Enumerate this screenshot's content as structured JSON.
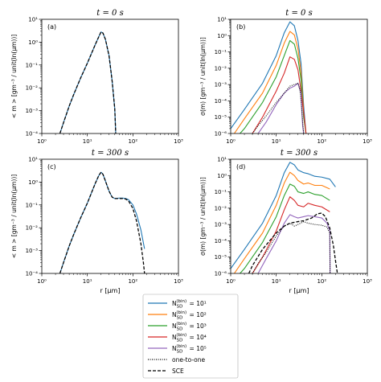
{
  "chart_data": [
    {
      "type": "line",
      "title": "t = 0 s",
      "panel_label": "(a)",
      "ylabel": "< m > [gm⁻³ / unit(ln(μm))]",
      "xlabel": "",
      "xscale": "log",
      "yscale": "log",
      "xlim": [
        1,
        1000
      ],
      "ylim": [
        0.0001,
        10
      ],
      "series": [
        {
          "ref": "bin10",
          "color": "#1f77b4",
          "dash": "",
          "x": [
            2.5,
            3,
            4,
            5,
            7,
            10,
            15,
            18,
            20,
            22,
            25,
            30,
            35,
            40,
            42
          ],
          "y": [
            0.0001,
            0.0003,
            0.0016,
            0.005,
            0.025,
            0.12,
            0.8,
            1.8,
            2.8,
            2.5,
            1.3,
            0.25,
            0.02,
            0.0012,
            0.0001
          ]
        },
        {
          "ref": "sce",
          "color": "#000000",
          "dash": "4,2",
          "x": [
            2.5,
            3,
            4,
            5,
            7,
            10,
            15,
            18,
            20,
            22,
            25,
            30,
            35,
            40,
            42
          ],
          "y": [
            0.0001,
            0.0003,
            0.0016,
            0.005,
            0.025,
            0.12,
            0.8,
            1.8,
            2.8,
            2.5,
            1.3,
            0.25,
            0.02,
            0.0012,
            0.0001
          ]
        }
      ]
    },
    {
      "type": "line",
      "title": "t = 0 s",
      "panel_label": "(b)",
      "ylabel": "σ(m) [gm⁻³ / unit(ln(μm))]",
      "xlabel": "",
      "xscale": "log",
      "yscale": "log",
      "xlim": [
        1,
        1000
      ],
      "ylim": [
        1e-06,
        10
      ],
      "series": [
        {
          "ref": "bin10",
          "color": "#1f77b4",
          "dash": "",
          "x": [
            1,
            2,
            5,
            10,
            15,
            20,
            25,
            30,
            35,
            40,
            45
          ],
          "y": [
            2e-06,
            3e-05,
            0.0012,
            0.06,
            1.5,
            7,
            4,
            0.5,
            0.02,
            5e-05,
            1e-06
          ]
        },
        {
          "ref": "bin100",
          "color": "#ff7f0e",
          "dash": "",
          "x": [
            1.2,
            2,
            5,
            10,
            15,
            20,
            25,
            30,
            35,
            40,
            45
          ],
          "y": [
            1e-06,
            8e-06,
            0.0003,
            0.015,
            0.35,
            1.8,
            1.1,
            0.15,
            0.006,
            2e-05,
            1e-06
          ]
        },
        {
          "ref": "bin1000",
          "color": "#2ca02c",
          "dash": "",
          "x": [
            1.6,
            2,
            5,
            10,
            15,
            20,
            25,
            30,
            35,
            40,
            45
          ],
          "y": [
            1e-06,
            2e-06,
            8e-05,
            0.003,
            0.06,
            0.5,
            0.3,
            0.04,
            0.002,
            1e-05,
            1e-06
          ]
        },
        {
          "ref": "bin10000",
          "color": "#d62728",
          "dash": "",
          "x": [
            3,
            5,
            10,
            15,
            20,
            25,
            30,
            35,
            40,
            45
          ],
          "y": [
            1e-06,
            1e-05,
            0.0004,
            0.005,
            0.05,
            0.035,
            0.008,
            0.0004,
            2e-05,
            1e-06
          ]
        },
        {
          "ref": "bin100000",
          "color": "#9467bd",
          "dash": "",
          "x": [
            4,
            6,
            10,
            15,
            20,
            25,
            30,
            35,
            38,
            40
          ],
          "y": [
            1e-06,
            5e-06,
            6e-05,
            0.0003,
            0.0006,
            0.0008,
            0.0012,
            0.0003,
            3e-06,
            1e-06
          ]
        },
        {
          "ref": "oto",
          "color": "#000000",
          "dash": "1,1.5",
          "x": [
            3,
            4,
            6,
            10,
            15,
            20,
            25,
            30,
            33,
            35,
            38,
            40
          ],
          "y": [
            1e-06,
            3e-06,
            1.2e-05,
            8e-05,
            0.0003,
            0.0008,
            0.001,
            0.0012,
            0.0005,
            0.0001,
            5e-06,
            1e-06
          ]
        }
      ]
    },
    {
      "type": "line",
      "title": "t = 300 s",
      "panel_label": "(c)",
      "ylabel": "< m > [gm⁻³ / unit(ln(μm))]",
      "xlabel": "r [μm]",
      "xscale": "log",
      "yscale": "log",
      "xlim": [
        1,
        1000
      ],
      "ylim": [
        0.0001,
        10
      ],
      "series": [
        {
          "ref": "bin10",
          "color": "#1f77b4",
          "dash": "",
          "x": [
            2.5,
            3,
            4,
            5,
            7,
            10,
            15,
            18,
            20,
            22,
            25,
            30,
            35,
            40,
            50,
            60,
            70,
            80,
            100,
            120,
            150,
            180
          ],
          "y": [
            0.0001,
            0.0003,
            0.0016,
            0.005,
            0.025,
            0.12,
            0.9,
            2.0,
            2.7,
            2.2,
            1.1,
            0.4,
            0.22,
            0.19,
            0.2,
            0.2,
            0.19,
            0.17,
            0.1,
            0.04,
            0.008,
            0.0012
          ]
        },
        {
          "ref": "sce",
          "color": "#000000",
          "dash": "4,2",
          "x": [
            2.5,
            3,
            4,
            5,
            7,
            10,
            15,
            18,
            20,
            22,
            25,
            30,
            35,
            40,
            50,
            60,
            70,
            80,
            100,
            120,
            150,
            170,
            180
          ],
          "y": [
            0.0001,
            0.0003,
            0.0016,
            0.005,
            0.025,
            0.12,
            0.9,
            2.0,
            2.7,
            2.2,
            1.1,
            0.4,
            0.22,
            0.19,
            0.19,
            0.19,
            0.18,
            0.15,
            0.07,
            0.02,
            0.002,
            0.0003,
            0.0001
          ]
        }
      ]
    },
    {
      "type": "line",
      "title": "t = 300 s",
      "panel_label": "(d)",
      "ylabel": "σ(m) [gm⁻³ / unit(ln(μm))]",
      "xlabel": "r [μm]",
      "xscale": "log",
      "yscale": "log",
      "xlim": [
        1,
        1000
      ],
      "ylim": [
        1e-06,
        10
      ],
      "series": [
        {
          "ref": "bin10",
          "color": "#1f77b4",
          "dash": "",
          "x": [
            1,
            2,
            5,
            10,
            15,
            20,
            25,
            30,
            40,
            50,
            70,
            100,
            150,
            200
          ],
          "y": [
            2e-06,
            3e-05,
            0.0012,
            0.06,
            1.5,
            6.5,
            4.5,
            2.2,
            1.5,
            1.3,
            0.9,
            0.8,
            0.6,
            0.2
          ]
        },
        {
          "ref": "bin100",
          "color": "#ff7f0e",
          "dash": "",
          "x": [
            1.2,
            2,
            5,
            10,
            15,
            20,
            25,
            30,
            40,
            50,
            70,
            100,
            150
          ],
          "y": [
            1e-06,
            8e-06,
            0.0003,
            0.015,
            0.35,
            1.6,
            1.0,
            0.5,
            0.3,
            0.35,
            0.25,
            0.25,
            0.15
          ]
        },
        {
          "ref": "bin1000",
          "color": "#2ca02c",
          "dash": "",
          "x": [
            1.6,
            2,
            5,
            10,
            15,
            20,
            25,
            30,
            40,
            50,
            70,
            100,
            150
          ],
          "y": [
            1e-06,
            2e-06,
            8e-05,
            0.003,
            0.06,
            0.3,
            0.22,
            0.1,
            0.08,
            0.1,
            0.07,
            0.06,
            0.03
          ]
        },
        {
          "ref": "bin10000",
          "color": "#d62728",
          "dash": "",
          "x": [
            3,
            5,
            10,
            15,
            20,
            25,
            30,
            40,
            50,
            70,
            100,
            150
          ],
          "y": [
            1e-06,
            1e-05,
            0.0004,
            0.008,
            0.05,
            0.03,
            0.015,
            0.012,
            0.02,
            0.015,
            0.012,
            0.006
          ]
        },
        {
          "ref": "bin100000",
          "color": "#9467bd",
          "dash": "",
          "x": [
            4,
            6,
            10,
            15,
            20,
            25,
            30,
            40,
            50,
            70,
            100,
            130,
            150,
            152
          ],
          "y": [
            1e-06,
            8e-06,
            0.0001,
            0.0012,
            0.004,
            0.003,
            0.0025,
            0.003,
            0.0035,
            0.003,
            0.0025,
            0.0012,
            0.0004,
            1e-06
          ]
        },
        {
          "ref": "oto",
          "color": "#000000",
          "dash": "1,1.5",
          "x": [
            3,
            4,
            6,
            10,
            15,
            20,
            25,
            30,
            40,
            50,
            70,
            100,
            130,
            150,
            152
          ],
          "y": [
            1e-06,
            4e-06,
            2e-05,
            0.0002,
            0.0008,
            0.0012,
            0.0008,
            0.001,
            0.0015,
            0.0012,
            0.001,
            0.0009,
            0.0007,
            0.0003,
            1e-06
          ]
        },
        {
          "ref": "sce",
          "color": "#000000",
          "dash": "4,2",
          "x": [
            2.5,
            3,
            5,
            10,
            15,
            20,
            30,
            40,
            60,
            80,
            100,
            120,
            150,
            180,
            200,
            220
          ],
          "y": [
            1e-06,
            3e-06,
            3e-05,
            0.0003,
            0.0008,
            0.0012,
            0.0015,
            0.0017,
            0.0025,
            0.0045,
            0.005,
            0.003,
            0.0006,
            5e-05,
            6e-06,
            1e-06
          ]
        }
      ]
    }
  ],
  "legend": [
    {
      "ref": "bin10",
      "label": "N_SD^(bin) = 10^1",
      "exp": "1",
      "color": "#1f77b4",
      "dash": ""
    },
    {
      "ref": "bin100",
      "label": "N_SD^(bin) = 10^2",
      "exp": "2",
      "color": "#ff7f0e",
      "dash": ""
    },
    {
      "ref": "bin1000",
      "label": "N_SD^(bin) = 10^3",
      "exp": "3",
      "color": "#2ca02c",
      "dash": ""
    },
    {
      "ref": "bin10000",
      "label": "N_SD^(bin) = 10^4",
      "exp": "4",
      "color": "#d62728",
      "dash": ""
    },
    {
      "ref": "bin100000",
      "label": "N_SD^(bin) = 10^5",
      "exp": "5",
      "color": "#9467bd",
      "dash": ""
    },
    {
      "ref": "oto",
      "label": "one-to-one",
      "color": "#000000",
      "dash": "1,1.5"
    },
    {
      "ref": "sce",
      "label": "SCE",
      "color": "#000000",
      "dash": "4,2"
    }
  ]
}
